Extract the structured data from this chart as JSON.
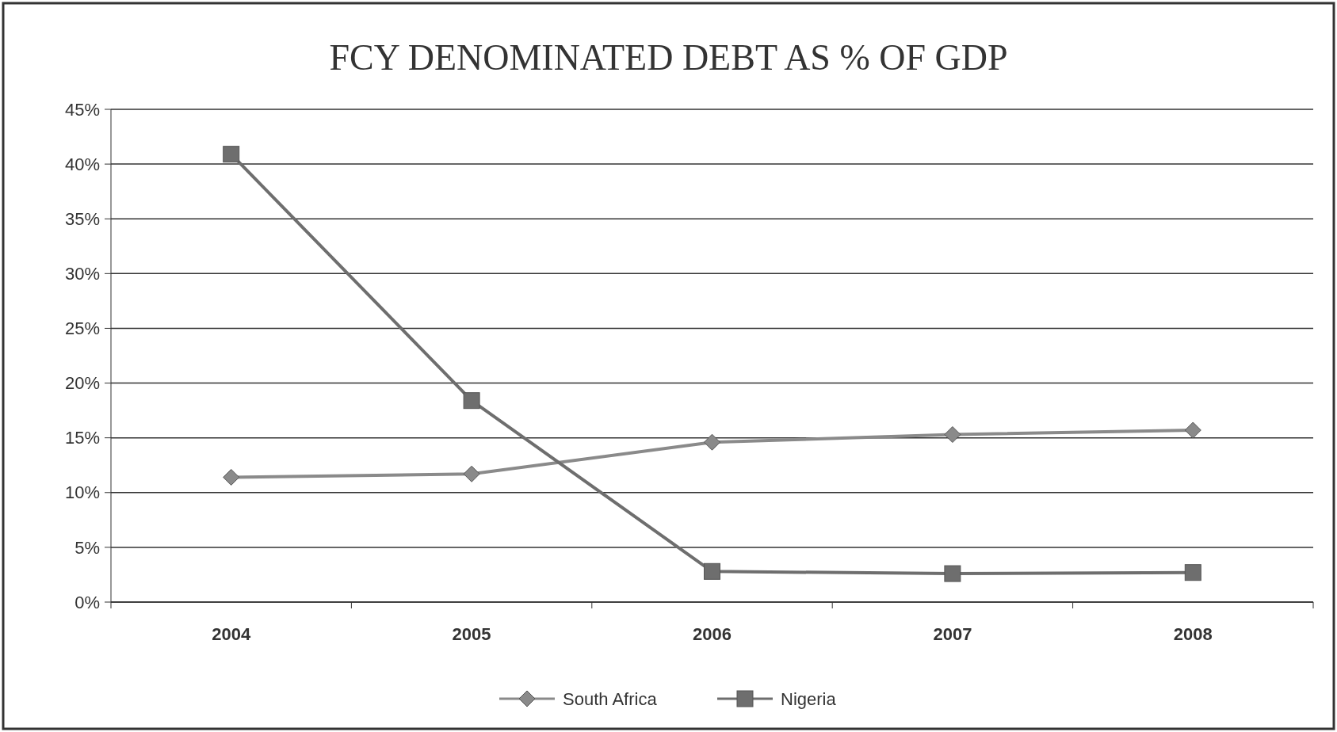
{
  "chart_data": {
    "type": "line",
    "title": "FCY DENOMINATED DEBT AS % OF GDP",
    "categories": [
      "2004",
      "2005",
      "2006",
      "2007",
      "2008"
    ],
    "series": [
      {
        "name": "South Africa",
        "color": "#8a8a8a",
        "marker": "diamond",
        "values": [
          11.4,
          11.7,
          14.6,
          15.3,
          15.7
        ]
      },
      {
        "name": "Nigeria",
        "color": "#6e6e6e",
        "marker": "square",
        "values": [
          40.9,
          18.4,
          2.8,
          2.6,
          2.7
        ]
      }
    ],
    "ylim": [
      0,
      45
    ],
    "yticks": [
      {
        "value": 0,
        "label": "0%"
      },
      {
        "value": 5,
        "label": "5%"
      },
      {
        "value": 10,
        "label": "10%"
      },
      {
        "value": 15,
        "label": "15%"
      },
      {
        "value": 20,
        "label": "20%"
      },
      {
        "value": 25,
        "label": "25%"
      },
      {
        "value": 30,
        "label": "30%"
      },
      {
        "value": 35,
        "label": "35%"
      },
      {
        "value": 40,
        "label": "40%"
      },
      {
        "value": 45,
        "label": "45%"
      }
    ],
    "grid": "y",
    "legend": "bottom"
  }
}
